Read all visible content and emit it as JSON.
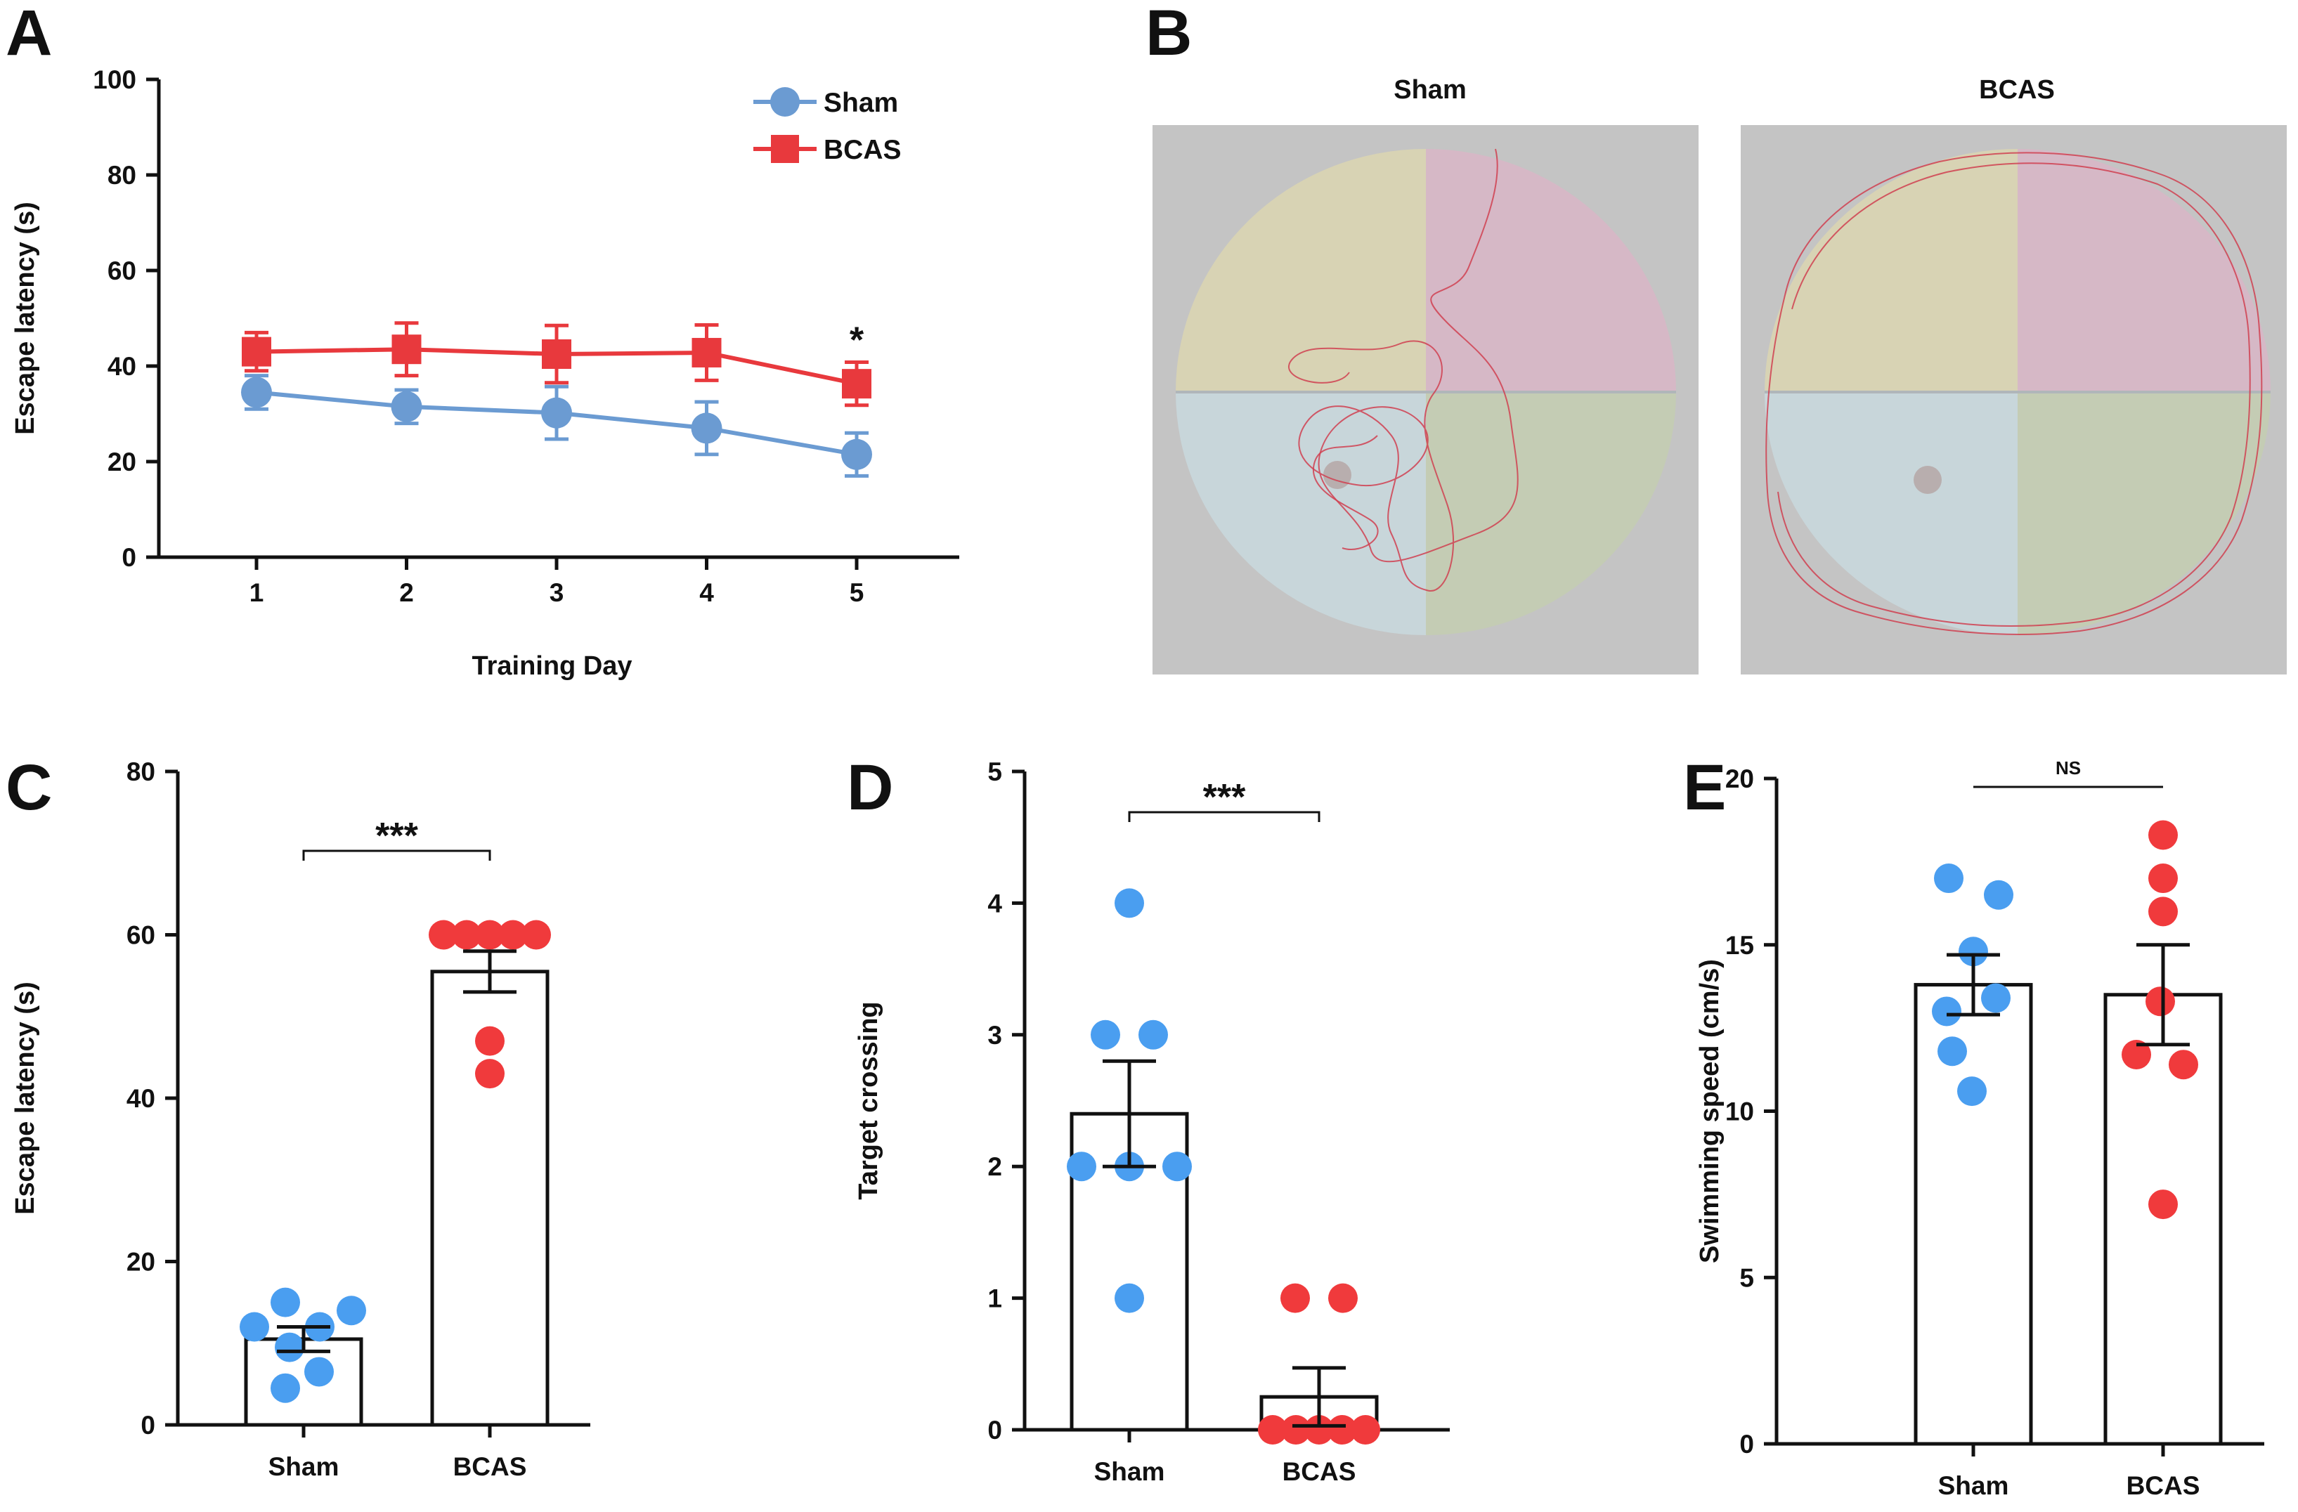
{
  "colors": {
    "sham": "#6b9bd2",
    "bcas": "#e8393d",
    "sham_dot": "#4a9ef0",
    "bcas_dot": "#f03a3c",
    "maze_bg": "#c4c4c4",
    "q_top_left": "#d8d3b4",
    "q_top_right": "#d6b8c6",
    "q_bottom_left": "#c8d6da",
    "q_bottom_right": "#c4ccb4",
    "path": "#d04050",
    "platform": "#b8aeae"
  },
  "panels": {
    "A": {
      "letter": "A"
    },
    "B": {
      "letter": "B",
      "maze_titles": [
        "Sham",
        "BCAS"
      ]
    },
    "C": {
      "letter": "C"
    },
    "D": {
      "letter": "D"
    },
    "E": {
      "letter": "E"
    }
  },
  "chart_data": [
    {
      "panel": "A",
      "type": "line",
      "xlabel": "Training Day",
      "ylabel": "Escape latency (s)",
      "x": [
        1,
        2,
        3,
        4,
        5
      ],
      "xticks": [
        "1",
        "2",
        "3",
        "4",
        "5"
      ],
      "ylim": [
        0,
        100
      ],
      "yticks": [
        "0",
        "20",
        "40",
        "60",
        "80",
        "100"
      ],
      "series": [
        {
          "name": "Sham",
          "marker": "circle",
          "values": [
            34.5,
            31.5,
            30.2,
            27.0,
            21.5
          ],
          "err": [
            3.5,
            3.5,
            5.5,
            5.5,
            4.5
          ]
        },
        {
          "name": "BCAS",
          "marker": "square",
          "values": [
            43.0,
            43.5,
            42.5,
            42.8,
            36.3
          ],
          "err": [
            4.0,
            5.5,
            6.0,
            5.8,
            4.5
          ]
        }
      ],
      "annotations": [
        {
          "x": 5,
          "text": "*"
        }
      ],
      "legend_position": "top-right"
    },
    {
      "panel": "C",
      "type": "bar",
      "ylabel": "Escape latency (s)",
      "categories": [
        "Sham",
        "BCAS"
      ],
      "ylim": [
        0,
        80
      ],
      "yticks": [
        "0",
        "20",
        "40",
        "60",
        "80"
      ],
      "means": [
        10.5,
        55.5
      ],
      "sem": [
        1.5,
        2.5
      ],
      "points": [
        [
          15,
          12,
          14,
          12,
          9.5,
          6.5,
          4.5
        ],
        [
          60,
          60,
          60,
          60,
          60,
          47,
          43
        ]
      ],
      "significance": "***"
    },
    {
      "panel": "D",
      "type": "bar",
      "ylabel": "Target crossing",
      "categories": [
        "Sham",
        "BCAS"
      ],
      "ylim": [
        0,
        5
      ],
      "yticks": [
        "0",
        "1",
        "2",
        "3",
        "4",
        "5"
      ],
      "means": [
        2.4,
        0.25
      ],
      "sem": [
        0.4,
        0.22
      ],
      "points": [
        [
          4,
          3,
          3,
          2,
          2,
          2,
          1
        ],
        [
          1,
          1,
          0,
          0,
          0,
          0,
          0
        ]
      ],
      "significance": "***"
    },
    {
      "panel": "E",
      "type": "bar",
      "ylabel": "Swimming speed (cm/s)",
      "categories": [
        "Sham",
        "BCAS"
      ],
      "ylim": [
        0,
        20
      ],
      "yticks": [
        "0",
        "5",
        "10",
        "15",
        "20"
      ],
      "means": [
        13.8,
        13.5
      ],
      "sem": [
        0.9,
        1.5
      ],
      "points": [
        [
          17,
          16.5,
          14.8,
          13,
          13.4,
          11.8,
          10.6
        ],
        [
          18.3,
          17,
          16,
          13.3,
          11.7,
          11.4,
          7.2
        ]
      ],
      "significance": "NS"
    }
  ]
}
